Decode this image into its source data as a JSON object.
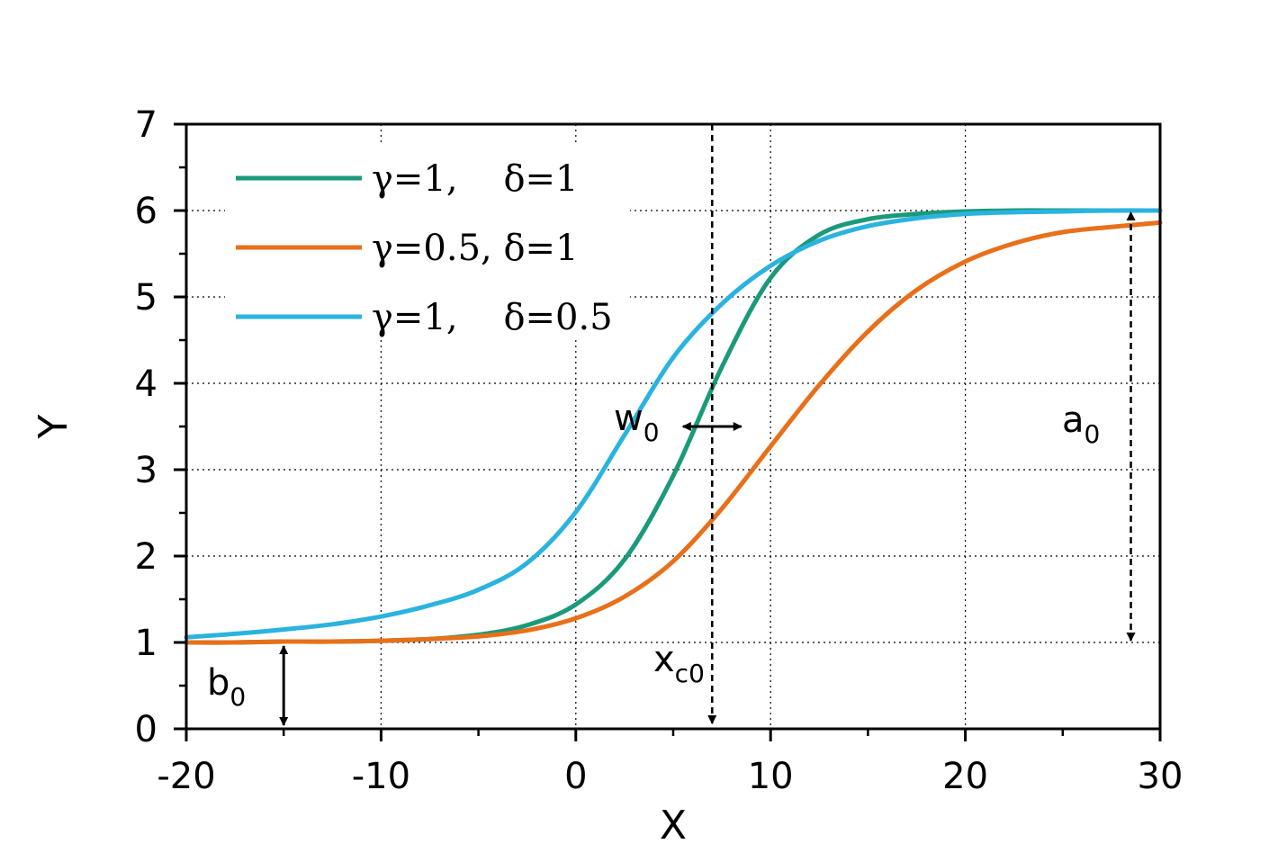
{
  "chart_data": {
    "type": "line",
    "xlabel": "X",
    "ylabel": "Y",
    "xlim": [
      -20,
      30
    ],
    "ylim": [
      0,
      7
    ],
    "x_ticks": [
      -20,
      -10,
      0,
      10,
      20,
      30
    ],
    "y_ticks": [
      0,
      1,
      2,
      3,
      4,
      5,
      6,
      7
    ],
    "grid": true,
    "legend_position": "top-left",
    "x": [
      -20,
      -17.5,
      -15,
      -12.5,
      -10,
      -7.5,
      -5,
      -2.5,
      0,
      2.5,
      5,
      7.5,
      10,
      12.5,
      15,
      17.5,
      20,
      22.5,
      25,
      27.5,
      30
    ],
    "series": [
      {
        "name": "γ=1,    δ=1",
        "color": "#1a9a7a",
        "values": [
          1.0,
          1.0,
          1.01,
          1.01,
          1.02,
          1.04,
          1.09,
          1.2,
          1.44,
          1.96,
          2.93,
          4.19,
          5.22,
          5.72,
          5.9,
          5.96,
          5.99,
          6.0,
          6.0,
          6.0,
          6.0
        ]
      },
      {
        "name": "γ=0.5, δ=1",
        "color": "#e8701a",
        "values": [
          1.0,
          1.0,
          1.01,
          1.01,
          1.02,
          1.04,
          1.07,
          1.14,
          1.28,
          1.53,
          1.94,
          2.55,
          3.27,
          3.98,
          4.6,
          5.08,
          5.41,
          5.62,
          5.75,
          5.81,
          5.86
        ]
      },
      {
        "name": "γ=1,    δ=0.5",
        "color": "#2bb3e0",
        "values": [
          1.06,
          1.1,
          1.15,
          1.21,
          1.3,
          1.43,
          1.61,
          1.92,
          2.51,
          3.4,
          4.3,
          4.92,
          5.36,
          5.65,
          5.82,
          5.91,
          5.96,
          5.98,
          5.99,
          6.0,
          6.0
        ]
      }
    ],
    "annotations": {
      "w": "w",
      "w_sub": "0",
      "a": "a",
      "a_sub": "0",
      "b": "b",
      "b_sub": "0",
      "xc": "x",
      "xc_sub": "c0",
      "xc_value": 7,
      "w_range": [
        5.5,
        8.5
      ],
      "w_y": 3.5,
      "a_x": 28.5,
      "a_range": [
        1,
        6
      ],
      "b_x": -15,
      "b_range": [
        0,
        1
      ]
    }
  }
}
